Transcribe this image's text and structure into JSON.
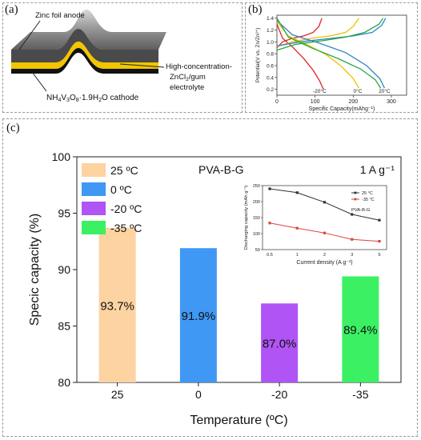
{
  "panel_a": {
    "label": "(a)",
    "labels": {
      "zinc": "Zinc foil anode",
      "electrolyte_1": "High-concentration-",
      "electrolyte_2": "ZnCl",
      "electrolyte_2_sub": "2",
      "electrolyte_2_tail": "/gum",
      "electrolyte_3": "electrolyte",
      "cathode": "NH",
      "cathode_sub1": "4",
      "cathode_mid": "V",
      "cathode_sub2": "3",
      "cathode_mid2": "O",
      "cathode_sub3": "8",
      "cathode_tail": "·1.9H",
      "cathode_sub4": "2",
      "cathode_end": "O cathode"
    },
    "colors": {
      "zinc": "#8c8c8c",
      "electrolyte": "#f1c500",
      "cathode": "#111111"
    }
  },
  "panel_b": {
    "label": "(b)",
    "chart_data": {
      "type": "line",
      "xlabel": "Specific Capacity(mAhg⁻¹)",
      "ylabel": "Potential(V vs. Zn/Zn²⁺)",
      "xlim": [
        0,
        340
      ],
      "ylim": [
        0.1,
        1.45
      ],
      "xticks": [
        "0",
        "100",
        "200",
        "300"
      ],
      "yticks": [
        "0.2",
        "0.4",
        "0.6",
        "0.8",
        "1.0",
        "1.2",
        "1.4"
      ],
      "series": [
        {
          "name": "-20°C",
          "color": "#e02424",
          "charge": [
            [
              0,
              0.9
            ],
            [
              15,
              1.0
            ],
            [
              40,
              1.06
            ],
            [
              70,
              1.1
            ],
            [
              95,
              1.16
            ],
            [
              110,
              1.26
            ],
            [
              118,
              1.4
            ]
          ],
          "discharge": [
            [
              0,
              1.3
            ],
            [
              15,
              1.06
            ],
            [
              40,
              0.92
            ],
            [
              70,
              0.72
            ],
            [
              95,
              0.52
            ],
            [
              112,
              0.34
            ],
            [
              122,
              0.2
            ]
          ]
        },
        {
          "name": "0°C",
          "color": "#f0c000",
          "charge": [
            [
              0,
              0.92
            ],
            [
              40,
              1.0
            ],
            [
              90,
              1.06
            ],
            [
              140,
              1.1
            ],
            [
              180,
              1.16
            ],
            [
              200,
              1.26
            ],
            [
              215,
              1.4
            ]
          ],
          "discharge": [
            [
              0,
              1.34
            ],
            [
              30,
              1.1
            ],
            [
              80,
              0.95
            ],
            [
              130,
              0.78
            ],
            [
              170,
              0.58
            ],
            [
              200,
              0.38
            ],
            [
              215,
              0.22
            ]
          ]
        },
        {
          "name": "20°C",
          "color": "#2f82c8",
          "charge": [
            [
              0,
              0.93
            ],
            [
              60,
              1.0
            ],
            [
              130,
              1.05
            ],
            [
              200,
              1.1
            ],
            [
              250,
              1.16
            ],
            [
              275,
              1.28
            ],
            [
              285,
              1.4
            ]
          ],
          "discharge": [
            [
              0,
              1.36
            ],
            [
              40,
              1.12
            ],
            [
              110,
              0.98
            ],
            [
              180,
              0.82
            ],
            [
              235,
              0.6
            ],
            [
              270,
              0.38
            ],
            [
              282,
              0.22
            ]
          ]
        },
        {
          "name": "",
          "color": "#28a842",
          "charge": [
            [
              0,
              0.86
            ],
            [
              50,
              0.96
            ],
            [
              120,
              1.02
            ],
            [
              180,
              1.08
            ],
            [
              230,
              1.16
            ],
            [
              268,
              1.3
            ],
            [
              278,
              1.4
            ]
          ],
          "discharge": [
            [
              0,
              1.4
            ],
            [
              30,
              1.08
            ],
            [
              90,
              0.9
            ],
            [
              160,
              0.72
            ],
            [
              220,
              0.54
            ],
            [
              258,
              0.36
            ],
            [
              272,
              0.22
            ]
          ]
        }
      ],
      "curve_labels": [
        "-20°C",
        "0°C",
        "20°C"
      ]
    }
  },
  "panel_c": {
    "label": "(c)",
    "title": "PVA-B-G",
    "rate": "1 A g⁻¹",
    "chart_data": {
      "type": "bar",
      "categories": [
        "25",
        "0",
        "-20",
        "-35"
      ],
      "values": [
        93.7,
        91.9,
        87.0,
        89.4
      ],
      "data_labels": [
        "93.7%",
        "91.9%",
        "87.0%",
        "89.4%"
      ],
      "colors": [
        "#fcd3a1",
        "#3f98f4",
        "#b054f5",
        "#3cf064"
      ],
      "legend": [
        "25 ºC",
        "0 ºC",
        "-20 ºC",
        "-35 ºC"
      ],
      "legend_placement": "top-left",
      "xlabel": "Temperature (ºC)",
      "ylabel": "Specic capacity (%)",
      "ylim": [
        80,
        100
      ],
      "yticks": [
        "80",
        "85",
        "90",
        "95",
        "100"
      ]
    },
    "inset": {
      "chart_data": {
        "type": "line",
        "categories": [
          "0.5",
          "1",
          "2",
          "3",
          "5"
        ],
        "xlabel": "Current density (A g⁻¹)",
        "ylabel": "Discharging capacity (mAh g⁻¹)",
        "ylim": [
          50,
          250
        ],
        "yticks": [
          "50",
          "100",
          "150",
          "200",
          "250"
        ],
        "series": [
          {
            "name": "25 °C",
            "color": "#333333",
            "values": [
              240,
              228,
              198,
              160,
              142
            ]
          },
          {
            "name": "-35 °C",
            "color": "#d9443f",
            "values": [
              133,
              117,
              102,
              82,
              76
            ]
          }
        ],
        "label": "PVA-B-G"
      }
    }
  }
}
